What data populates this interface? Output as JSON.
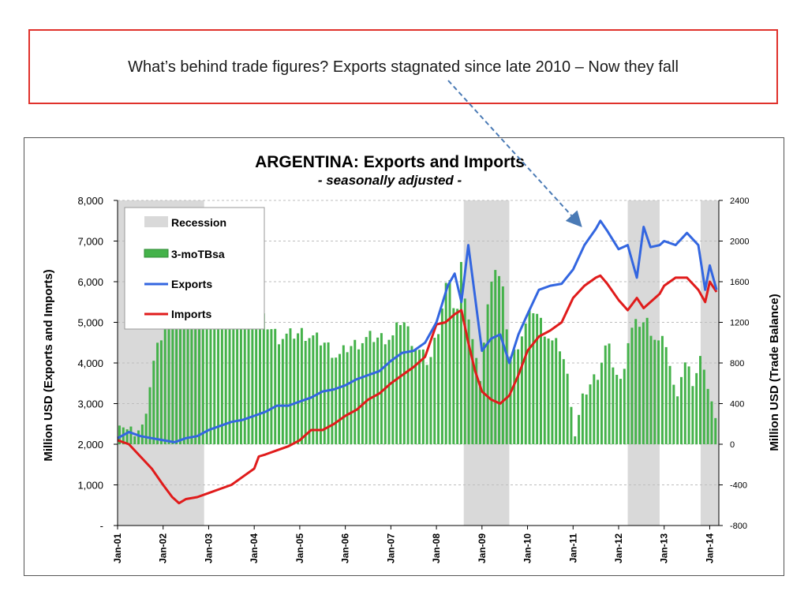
{
  "slide": {
    "headline": "What’s behind trade figures? Exports stagnated since late 2010 – Now they fall"
  },
  "chart_data": {
    "type": "line",
    "title": "ARGENTINA: Exports and Imports",
    "subtitle": "- seasonally adjusted -",
    "ylabel": "Million USD (Exports and Imports)",
    "y2label": "Million USD (Trade Balance)",
    "ylim": [
      0,
      8000
    ],
    "y2lim": [
      -800,
      2400
    ],
    "yticks": [
      "-",
      "1,000",
      "2,000",
      "3,000",
      "4,000",
      "5,000",
      "6,000",
      "7,000",
      "8,000"
    ],
    "y2ticks": [
      "-800",
      "-400",
      "0",
      "400",
      "800",
      "1200",
      "1600",
      "2000",
      "2400"
    ],
    "xticks": [
      "Jan-01",
      "Jan-02",
      "Jan-03",
      "Jan-04",
      "Jan-05",
      "Jan-06",
      "Jan-07",
      "Jan-08",
      "Jan-09",
      "Jan-10",
      "Jan-11",
      "Jan-12",
      "Jan-13",
      "Jan-14"
    ],
    "grid": true,
    "legend": {
      "position": "top-left",
      "entries": [
        "Recession",
        "3-moTBsa",
        "Exports",
        "Imports"
      ]
    },
    "colors": {
      "recession": "#d9d9d9",
      "tb": "#44b24a",
      "exports": "#3366e0",
      "imports": "#e01b1b"
    },
    "recessions": [
      [
        2001.0,
        2002.9
      ],
      [
        2008.6,
        2009.6
      ],
      [
        2012.2,
        2012.9
      ],
      [
        2013.8,
        2014.2
      ]
    ],
    "exports": {
      "name": "Exports",
      "x": [
        2001.0,
        2001.25,
        2001.5,
        2001.75,
        2002.0,
        2002.25,
        2002.5,
        2002.75,
        2003.0,
        2003.25,
        2003.5,
        2003.75,
        2004.0,
        2004.25,
        2004.5,
        2004.75,
        2005.0,
        2005.25,
        2005.5,
        2005.75,
        2006.0,
        2006.25,
        2006.5,
        2006.75,
        2007.0,
        2007.25,
        2007.5,
        2007.75,
        2008.0,
        2008.25,
        2008.4,
        2008.55,
        2008.7,
        2008.85,
        2009.0,
        2009.2,
        2009.4,
        2009.6,
        2009.8,
        2010.0,
        2010.25,
        2010.5,
        2010.75,
        2011.0,
        2011.25,
        2011.5,
        2011.6,
        2011.75,
        2012.0,
        2012.2,
        2012.4,
        2012.55,
        2012.7,
        2012.9,
        2013.0,
        2013.25,
        2013.5,
        2013.75,
        2013.9,
        2014.0,
        2014.15
      ],
      "values": [
        2150,
        2300,
        2200,
        2150,
        2100,
        2050,
        2150,
        2200,
        2350,
        2450,
        2550,
        2600,
        2700,
        2800,
        2950,
        2950,
        3050,
        3150,
        3300,
        3350,
        3450,
        3600,
        3700,
        3800,
        4050,
        4250,
        4300,
        4500,
        5000,
        5900,
        6200,
        5500,
        6900,
        5600,
        4300,
        4600,
        4700,
        4000,
        4700,
        5200,
        5800,
        5900,
        5950,
        6300,
        6900,
        7300,
        7500,
        7250,
        6800,
        6900,
        6100,
        7350,
        6850,
        6900,
        7000,
        6900,
        7200,
        6900,
        5800,
        6400,
        5800
      ]
    },
    "imports": {
      "name": "Imports",
      "x": [
        2001.0,
        2001.25,
        2001.5,
        2001.75,
        2002.0,
        2002.2,
        2002.35,
        2002.5,
        2002.75,
        2003.0,
        2003.25,
        2003.5,
        2003.75,
        2004.0,
        2004.1,
        2004.25,
        2004.5,
        2004.75,
        2005.0,
        2005.25,
        2005.5,
        2005.75,
        2006.0,
        2006.25,
        2006.5,
        2006.75,
        2007.0,
        2007.25,
        2007.5,
        2007.75,
        2008.0,
        2008.2,
        2008.4,
        2008.55,
        2008.7,
        2008.85,
        2009.0,
        2009.2,
        2009.4,
        2009.6,
        2009.8,
        2010.0,
        2010.25,
        2010.5,
        2010.75,
        2011.0,
        2011.25,
        2011.5,
        2011.6,
        2011.75,
        2012.0,
        2012.2,
        2012.4,
        2012.55,
        2012.7,
        2012.9,
        2013.0,
        2013.25,
        2013.5,
        2013.75,
        2013.9,
        2014.0,
        2014.15
      ],
      "values": [
        2100,
        2000,
        1700,
        1400,
        1000,
        700,
        550,
        650,
        700,
        800,
        900,
        1000,
        1200,
        1400,
        1700,
        1750,
        1850,
        1950,
        2100,
        2350,
        2350,
        2500,
        2700,
        2850,
        3100,
        3250,
        3500,
        3700,
        3900,
        4150,
        4950,
        5000,
        5200,
        5300,
        4500,
        3800,
        3300,
        3100,
        3000,
        3200,
        3700,
        4300,
        4650,
        4800,
        5000,
        5600,
        5900,
        6100,
        6150,
        5950,
        5550,
        5300,
        5600,
        5350,
        5500,
        5700,
        5900,
        6100,
        6100,
        5800,
        5500,
        6000,
        5750
      ]
    },
    "tb": {
      "name": "3-moTBsa",
      "anchors_x": [
        2001.0,
        2001.2,
        2001.5,
        2001.75,
        2002.0,
        2002.3,
        2002.6,
        2003.0,
        2003.5,
        2003.9,
        2004.2,
        2004.5,
        2005.0,
        2005.5,
        2005.8,
        2006.0,
        2006.5,
        2007.0,
        2007.2,
        2007.5,
        2007.8,
        2008.0,
        2008.2,
        2008.4,
        2008.5,
        2008.7,
        2008.9,
        2009.0,
        2009.2,
        2009.4,
        2009.6,
        2009.75,
        2010.0,
        2010.1,
        2010.3,
        2010.5,
        2010.7,
        2010.9,
        2011.0,
        2011.2,
        2011.5,
        2011.7,
        2011.9,
        2012.0,
        2012.2,
        2012.4,
        2012.6,
        2012.8,
        2013.0,
        2013.2,
        2013.4,
        2013.6,
        2013.8,
        2013.9,
        2014.0,
        2014.1,
        2014.2
      ],
      "anchors_v": [
        250,
        100,
        150,
        800,
        1200,
        1400,
        1500,
        1500,
        1550,
        1400,
        1200,
        1050,
        1100,
        1000,
        850,
        950,
        1050,
        1050,
        1250,
        950,
        800,
        1150,
        1650,
        1250,
        1750,
        1150,
        600,
        1000,
        1800,
        1550,
        800,
        1000,
        1250,
        1350,
        1150,
        1000,
        950,
        500,
        100,
        500,
        700,
        1000,
        700,
        600,
        1100,
        1200,
        1200,
        1000,
        1000,
        450,
        800,
        600,
        900,
        600,
        400,
        150,
        100
      ]
    }
  }
}
